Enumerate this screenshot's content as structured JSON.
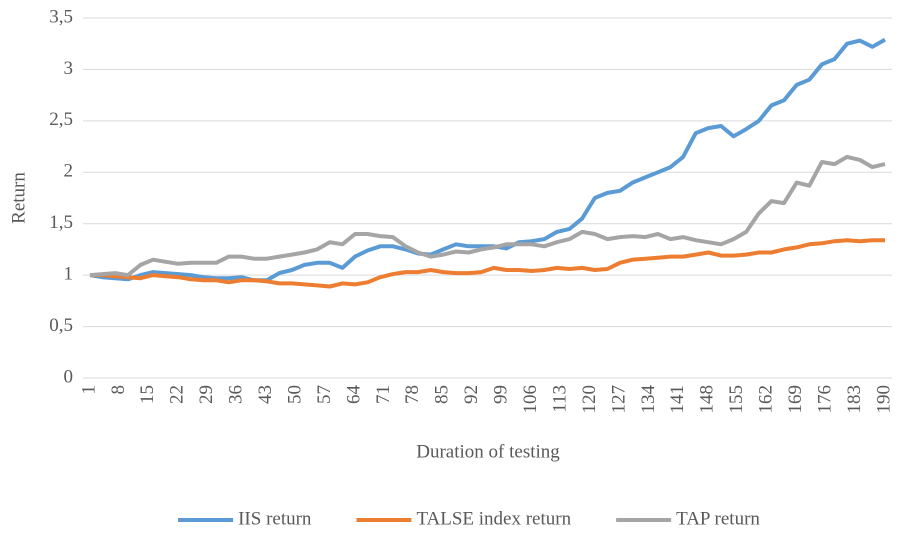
{
  "chart_data": {
    "type": "line",
    "xlabel": "Duration of testing",
    "ylabel": "Return",
    "x": [
      1,
      4,
      7,
      10,
      13,
      16,
      19,
      22,
      25,
      28,
      31,
      34,
      37,
      40,
      43,
      46,
      49,
      52,
      55,
      58,
      61,
      64,
      67,
      70,
      73,
      76,
      79,
      82,
      85,
      88,
      91,
      94,
      97,
      100,
      103,
      106,
      109,
      112,
      115,
      118,
      121,
      124,
      127,
      130,
      133,
      136,
      139,
      142,
      145,
      148,
      151,
      154,
      157,
      160,
      163,
      166,
      169,
      172,
      175,
      178,
      181,
      184,
      187,
      190
    ],
    "series": [
      {
        "name": "IIS return",
        "color": "#5b9bd5",
        "values": [
          1.0,
          0.98,
          0.97,
          0.96,
          1.0,
          1.03,
          1.02,
          1.01,
          1.0,
          0.98,
          0.97,
          0.97,
          0.98,
          0.95,
          0.95,
          1.02,
          1.05,
          1.1,
          1.12,
          1.12,
          1.07,
          1.18,
          1.24,
          1.28,
          1.28,
          1.25,
          1.21,
          1.2,
          1.25,
          1.3,
          1.28,
          1.28,
          1.28,
          1.26,
          1.32,
          1.33,
          1.35,
          1.42,
          1.45,
          1.55,
          1.75,
          1.8,
          1.82,
          1.9,
          1.95,
          2.0,
          2.05,
          2.15,
          2.38,
          2.43,
          2.45,
          2.35,
          2.42,
          2.5,
          2.65,
          2.7,
          2.85,
          2.9,
          3.05,
          3.1,
          3.25,
          3.28,
          3.22,
          3.29
        ]
      },
      {
        "name": "TALSE index return",
        "color": "#ed7d31",
        "values": [
          1.0,
          1.0,
          0.99,
          0.98,
          0.97,
          1.0,
          0.99,
          0.98,
          0.96,
          0.95,
          0.95,
          0.93,
          0.95,
          0.95,
          0.94,
          0.92,
          0.92,
          0.91,
          0.9,
          0.89,
          0.92,
          0.91,
          0.93,
          0.98,
          1.01,
          1.03,
          1.03,
          1.05,
          1.03,
          1.02,
          1.02,
          1.03,
          1.07,
          1.05,
          1.05,
          1.04,
          1.05,
          1.07,
          1.06,
          1.07,
          1.05,
          1.06,
          1.12,
          1.15,
          1.16,
          1.17,
          1.18,
          1.18,
          1.2,
          1.22,
          1.19,
          1.19,
          1.2,
          1.22,
          1.22,
          1.25,
          1.27,
          1.3,
          1.31,
          1.33,
          1.34,
          1.33,
          1.34,
          1.34
        ]
      },
      {
        "name": "TAP return",
        "color": "#a5a5a5",
        "values": [
          1.0,
          1.01,
          1.02,
          1.0,
          1.1,
          1.15,
          1.13,
          1.11,
          1.12,
          1.12,
          1.12,
          1.18,
          1.18,
          1.16,
          1.16,
          1.18,
          1.2,
          1.22,
          1.25,
          1.32,
          1.3,
          1.4,
          1.4,
          1.38,
          1.37,
          1.28,
          1.22,
          1.18,
          1.2,
          1.23,
          1.22,
          1.25,
          1.27,
          1.3,
          1.3,
          1.3,
          1.28,
          1.32,
          1.35,
          1.42,
          1.4,
          1.35,
          1.37,
          1.38,
          1.37,
          1.4,
          1.35,
          1.37,
          1.34,
          1.32,
          1.3,
          1.35,
          1.42,
          1.6,
          1.72,
          1.7,
          1.9,
          1.87,
          2.1,
          2.08,
          2.15,
          2.12,
          2.05,
          2.08
        ]
      }
    ],
    "xlim": [
      1,
      190
    ],
    "xticks": [
      1,
      8,
      15,
      22,
      29,
      36,
      43,
      50,
      57,
      64,
      71,
      78,
      85,
      92,
      99,
      106,
      113,
      120,
      127,
      134,
      141,
      148,
      155,
      162,
      169,
      176,
      183,
      190
    ],
    "ylim": [
      0,
      3.5
    ],
    "yticks": [
      0,
      {
        "value": 0.5,
        "label": "0,5"
      },
      1,
      {
        "value": 1.5,
        "label": "1,5"
      },
      2,
      {
        "value": 2.5,
        "label": "2,5"
      },
      3,
      {
        "value": 3.5,
        "label": "3,5"
      }
    ],
    "grid": true,
    "legend": "bottom"
  }
}
